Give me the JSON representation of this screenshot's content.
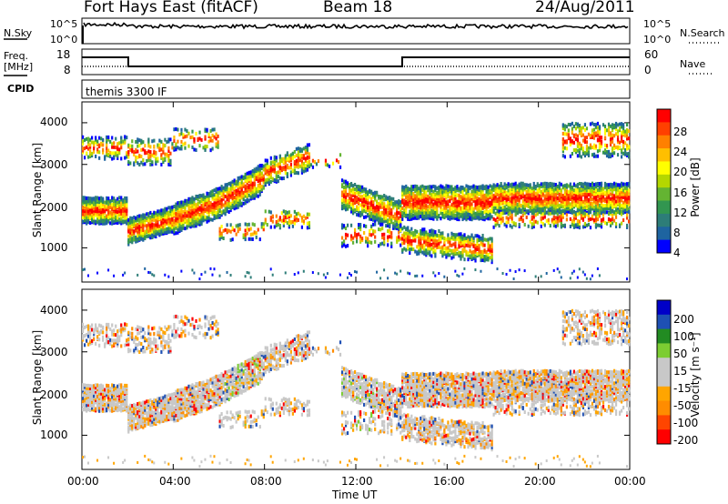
{
  "header": {
    "station": "Fort Hays East (fitACF)",
    "beam": "Beam 18",
    "date": "24/Aug/2011"
  },
  "top_panels": {
    "nsky_label": "N.Sky",
    "nsky_ticks": [
      "10^5",
      "10^0"
    ],
    "nsearch_label": "N.Search",
    "nsearch_ticks": [
      "10^5",
      "10^0"
    ],
    "freq_label": "Freq.",
    "freq_unit": "[MHz]",
    "freq_ticks": [
      "18",
      "8"
    ],
    "nave_label": "Nave",
    "nave_ticks": [
      "60",
      "0"
    ],
    "cpid_label": "CPID",
    "cpid_text": "themis 3300 IF"
  },
  "chart_data": [
    {
      "type": "heatmap",
      "name": "power-panel",
      "ylabel": "Slant Range [km]",
      "yticks": [
        "4000",
        "3000",
        "2000",
        "1000"
      ],
      "ylim": [
        180,
        4500
      ],
      "xlim": [
        0,
        24
      ],
      "colorbar_label": "Power [dB]",
      "colorbar_ticks": [
        "28",
        "24",
        "20",
        "16",
        "12",
        "8",
        "4"
      ],
      "colors": [
        "#ff0000",
        "#ff4000",
        "#ff8000",
        "#ffbf00",
        "#ffff00",
        "#b4d700",
        "#64b432",
        "#329650",
        "#2d7d78",
        "#1e64a0",
        "#0000ff"
      ]
    },
    {
      "type": "heatmap",
      "name": "velocity-panel",
      "ylabel": "Slant Range [km]",
      "yticks": [
        "4000",
        "3000",
        "2000",
        "1000"
      ],
      "ylim": [
        180,
        4500
      ],
      "xlim": [
        0,
        24
      ],
      "colorbar_label": "Velocity [m s⁻¹]",
      "colorbar_ticks": [
        "200",
        "100",
        "50",
        "15",
        "-15",
        "-50",
        "-100",
        "-200"
      ],
      "colors": [
        "#0000c8",
        "#1e50b4",
        "#228b22",
        "#7ccd32",
        "#c8c8c8",
        "#c8c8c8",
        "#ffa500",
        "#ff8c00",
        "#ff4500",
        "#ff0000"
      ]
    }
  ],
  "x_axis": {
    "ticks": [
      "00:00",
      "04:00",
      "08:00",
      "12:00",
      "16:00",
      "20:00",
      "00:00"
    ],
    "label": "Time UT"
  }
}
